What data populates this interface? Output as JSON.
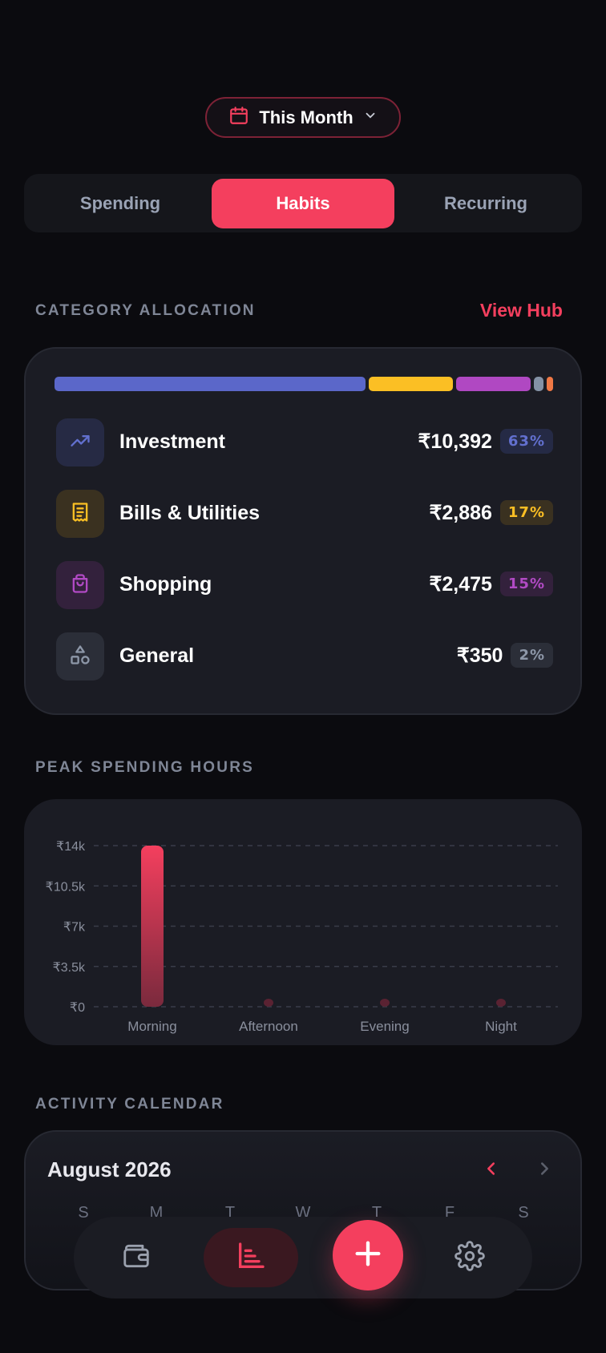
{
  "period": {
    "label": "This Month"
  },
  "tabs": [
    {
      "label": "Spending",
      "active": false
    },
    {
      "label": "Habits",
      "active": true
    },
    {
      "label": "Recurring",
      "active": false
    }
  ],
  "allocation": {
    "title": "CATEGORY ALLOCATION",
    "action": "View Hub",
    "bar_segments": [
      {
        "share": 0.63,
        "color": "#5b67c9"
      },
      {
        "share": 0.17,
        "color": "#fbbf24"
      },
      {
        "share": 0.15,
        "color": "#b048c2"
      },
      {
        "share": 0.02,
        "color": "#8492a6"
      },
      {
        "share": 0.01,
        "color": "#f07845"
      }
    ],
    "items": [
      {
        "name": "Investment",
        "amount": "₹10,392",
        "percent": "63%",
        "icon": "trending-up-icon",
        "color": "#6270cf",
        "bg": "#262a44",
        "pct_bg": "#252a45"
      },
      {
        "name": "Bills & Utilities",
        "amount": "₹2,886",
        "percent": "17%",
        "icon": "receipt-icon",
        "color": "#fbbf24",
        "bg": "#3a3120",
        "pct_bg": "#3a3120"
      },
      {
        "name": "Shopping",
        "amount": "₹2,475",
        "percent": "15%",
        "icon": "shopping-bag-icon",
        "color": "#b14ac4",
        "bg": "#33213c",
        "pct_bg": "#33213c"
      },
      {
        "name": "General",
        "amount": "₹350",
        "percent": "2%",
        "icon": "shapes-icon",
        "color": "#8d97a8",
        "bg": "#2b2e38",
        "pct_bg": "#2b2e38"
      }
    ]
  },
  "peak": {
    "title": "PEAK SPENDING HOURS"
  },
  "chart_data": {
    "type": "bar",
    "categories": [
      "Morning",
      "Afternoon",
      "Evening",
      "Night"
    ],
    "values": [
      14000,
      500,
      400,
      200
    ],
    "ylim": [
      0,
      14000
    ],
    "yticks": [
      "₹0",
      "₹3.5k",
      "₹7k",
      "₹10.5k",
      "₹14k"
    ],
    "ytick_values": [
      0,
      3500,
      7000,
      10500,
      14000
    ],
    "grid": true,
    "bar_color": "#f43f5e"
  },
  "calendar": {
    "title": "ACTIVITY CALENDAR",
    "month": "August 2026",
    "weekdays": [
      "S",
      "M",
      "T",
      "W",
      "T",
      "F",
      "S"
    ]
  },
  "nav": {
    "items": [
      "wallet-icon",
      "bar-chart-icon",
      "plus-icon",
      "settings-icon"
    ],
    "active": "bar-chart-icon"
  }
}
